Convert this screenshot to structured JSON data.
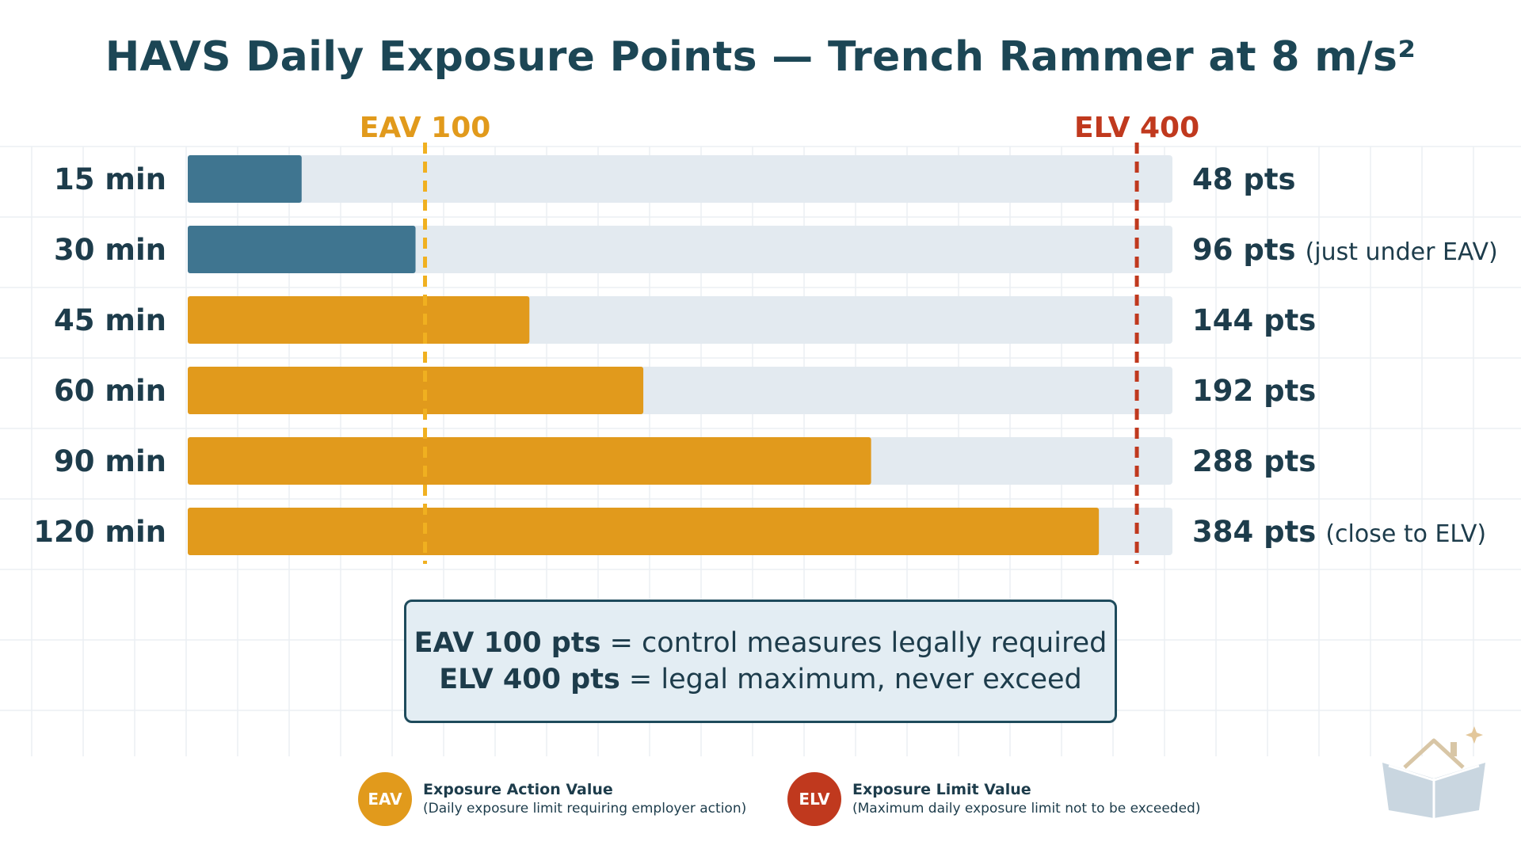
{
  "title": "HAVS Daily Exposure Points — Trench Rammer at 8 m/s²",
  "chart_data": {
    "type": "bar",
    "orientation": "horizontal",
    "title": "HAVS Daily Exposure Points — Trench Rammer at 8 m/s²",
    "categories": [
      "15 min",
      "30 min",
      "45 min",
      "60 min",
      "90 min",
      "120 min"
    ],
    "values": [
      48,
      96,
      144,
      192,
      288,
      384
    ],
    "value_labels": [
      "48 pts",
      "96 pts",
      "144 pts",
      "192 pts",
      "288 pts",
      "384 pts"
    ],
    "value_notes": [
      "",
      "(just under EAV)",
      "",
      "",
      "",
      "(close to ELV)"
    ],
    "xlim": [
      0,
      415
    ],
    "reference_lines": [
      {
        "label": "EAV 100",
        "value": 100,
        "color": "#f0b020",
        "style": "dashed"
      },
      {
        "label": "ELV 400",
        "value": 400,
        "color": "#c0391e",
        "style": "dashed"
      }
    ],
    "colors": {
      "below_eav": "#3f7590",
      "above_eav": "#e19a1c",
      "track": "#e3eaf0"
    },
    "grid": true
  },
  "info_box": {
    "line1_bold": "EAV 100 pts",
    "line1_rest": " = control measures legally required",
    "line2_bold": "ELV 400 pts",
    "line2_rest": " = legal maximum, never exceed"
  },
  "legend": [
    {
      "badge": "EAV",
      "title": "Exposure Action Value",
      "subtitle": "(Daily exposure limit requiring employer action)",
      "color": "#e19a1c"
    },
    {
      "badge": "ELV",
      "title": "Exposure Limit Value",
      "subtitle": "(Maximum daily exposure limit not to be exceeded)",
      "color": "#c0391e"
    }
  ],
  "logo_icon": "open-book-house-icon"
}
